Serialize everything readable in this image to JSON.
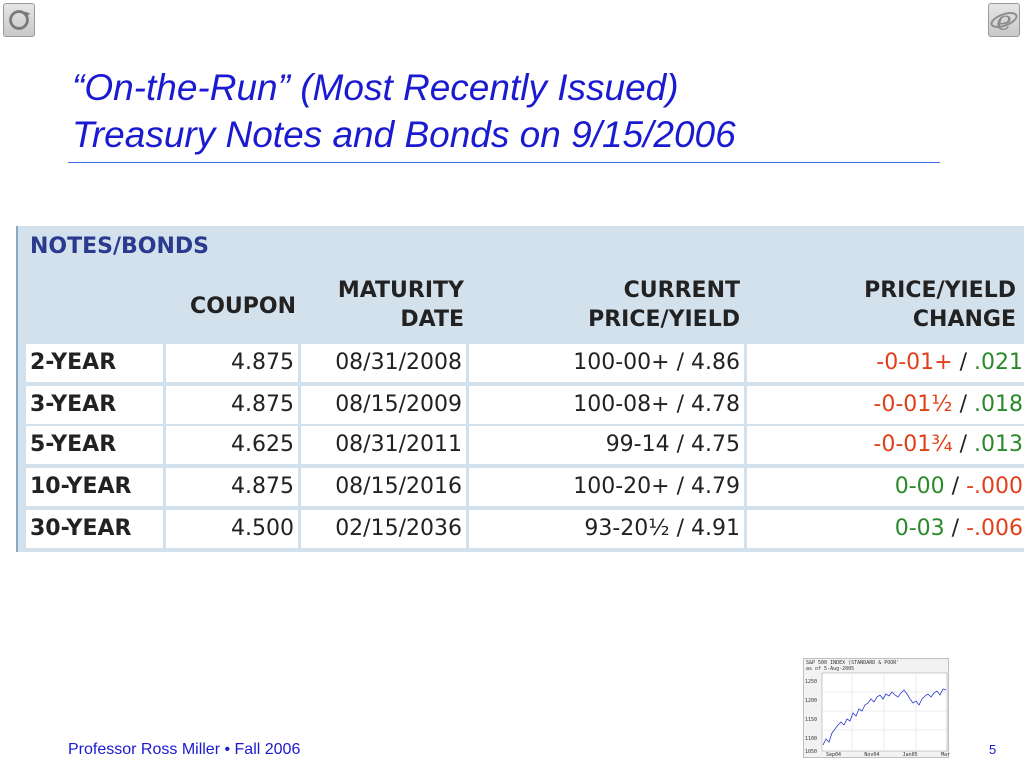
{
  "slide": {
    "title_line1": "“On-the-Run” (Most Recently Issued)",
    "title_line2": "Treasury Notes and Bonds on 9/15/2006",
    "footer": "Professor Ross Miller • Fall 2006",
    "page_number": "5",
    "icons": [
      "refresh-icon",
      "internet-explorer-icon"
    ]
  },
  "table": {
    "caption": "NOTES/BONDS",
    "headers": {
      "coupon": "COUPON",
      "maturity_l1": "MATURITY",
      "maturity_l2": "DATE",
      "price_l1": "CURRENT",
      "price_l2": "PRICE/YIELD",
      "change_l1": "PRICE/YIELD",
      "change_l2": "CHANGE"
    },
    "rows": [
      {
        "term": "2-YEAR",
        "coupon": "4.875",
        "maturity": "08/31/2008",
        "price_yield": "100-00+ / 4.86",
        "price_change": "-0-01+",
        "slash": " / ",
        "yield_change": ".021"
      },
      {
        "term": "3-YEAR",
        "coupon": "4.875",
        "maturity": "08/15/2009",
        "price_yield": "100-08+ / 4.78",
        "price_change": "-0-01½",
        "slash": " / ",
        "yield_change": ".018"
      },
      {
        "term": "5-YEAR",
        "coupon": "4.625",
        "maturity": "08/31/2011",
        "price_yield": "99-14 / 4.75",
        "price_change": "-0-01¾",
        "slash": " / ",
        "yield_change": ".013"
      },
      {
        "term": "10-YEAR",
        "coupon": "4.875",
        "maturity": "08/15/2016",
        "price_yield": "100-20+ / 4.79",
        "price_change": "0-00",
        "slash": " / ",
        "yield_change": "-.000"
      },
      {
        "term": "30-YEAR",
        "coupon": "4.500",
        "maturity": "02/15/2036",
        "price_yield": "93-20½ / 4.91",
        "price_change": "0-03",
        "slash": " / ",
        "yield_change": "-.006"
      }
    ],
    "colors": {
      "negative": "#e0401a",
      "positive": "#2a8a2a",
      "caption": "#2a3a8f",
      "background": "#d3e1ec"
    }
  },
  "mini_chart": {
    "title_l1": "S&P 500 INDEX (STANDARD & POOR'",
    "title_l2": "as of 5-Aug-2005",
    "y_ticks": [
      "1250",
      "1200",
      "1150",
      "1100",
      "1050"
    ],
    "x_ticks": [
      "Sep04",
      "Nov04",
      "Jan05",
      "Mar"
    ]
  }
}
